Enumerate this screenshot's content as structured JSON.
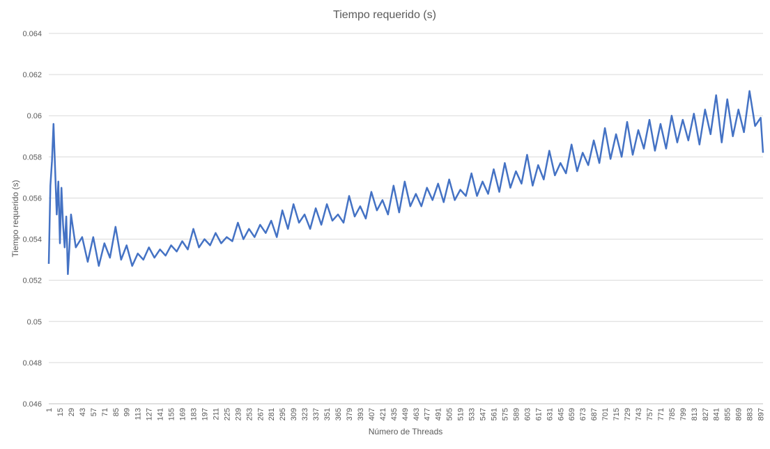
{
  "chart_data": {
    "type": "line",
    "title": "Tiempo requerido (s)",
    "xlabel": "Número de Threads",
    "ylabel": "Tiempo requerido (s)",
    "ylim": [
      0.046,
      0.064
    ],
    "xlim": [
      1,
      900
    ],
    "y_ticks": [
      "0.046",
      "0.048",
      "0.05",
      "0.052",
      "0.054",
      "0.056",
      "0.058",
      "0.06",
      "0.062",
      "0.064"
    ],
    "x_ticks": [
      "1",
      "15",
      "29",
      "43",
      "57",
      "71",
      "85",
      "99",
      "113",
      "127",
      "141",
      "155",
      "169",
      "183",
      "197",
      "211",
      "225",
      "239",
      "253",
      "267",
      "281",
      "295",
      "309",
      "323",
      "337",
      "351",
      "365",
      "379",
      "393",
      "407",
      "421",
      "435",
      "449",
      "463",
      "477",
      "491",
      "505",
      "519",
      "533",
      "547",
      "561",
      "575",
      "589",
      "603",
      "617",
      "631",
      "645",
      "659",
      "673",
      "687",
      "701",
      "715",
      "729",
      "743",
      "757",
      "771",
      "785",
      "799",
      "813",
      "827",
      "841",
      "855",
      "869",
      "883",
      "897"
    ],
    "grid": true,
    "legend": "none",
    "series": [
      {
        "color": "#4472c4",
        "x": [
          1,
          3,
          5,
          7,
          9,
          11,
          13,
          15,
          17,
          19,
          21,
          23,
          25,
          27,
          29,
          35,
          43,
          50,
          57,
          64,
          71,
          78,
          85,
          92,
          99,
          106,
          113,
          120,
          127,
          134,
          141,
          148,
          155,
          162,
          169,
          176,
          183,
          190,
          197,
          204,
          211,
          218,
          225,
          232,
          239,
          246,
          253,
          260,
          267,
          274,
          281,
          288,
          295,
          302,
          309,
          316,
          323,
          330,
          337,
          344,
          351,
          358,
          365,
          372,
          379,
          386,
          393,
          400,
          407,
          414,
          421,
          428,
          435,
          442,
          449,
          456,
          463,
          470,
          477,
          484,
          491,
          498,
          505,
          512,
          519,
          526,
          533,
          540,
          547,
          554,
          561,
          568,
          575,
          582,
          589,
          596,
          603,
          610,
          617,
          624,
          631,
          638,
          645,
          652,
          659,
          666,
          673,
          680,
          687,
          694,
          701,
          708,
          715,
          722,
          729,
          736,
          743,
          750,
          757,
          764,
          771,
          778,
          785,
          792,
          799,
          806,
          813,
          820,
          827,
          834,
          841,
          848,
          855,
          862,
          869,
          876,
          883,
          890,
          897,
          900
        ],
        "values": [
          0.0528,
          0.0566,
          0.0578,
          0.0596,
          0.0574,
          0.0552,
          0.0568,
          0.0538,
          0.0565,
          0.0547,
          0.0536,
          0.0551,
          0.0523,
          0.0536,
          0.0552,
          0.0536,
          0.0541,
          0.0529,
          0.0541,
          0.0527,
          0.0538,
          0.0531,
          0.0546,
          0.053,
          0.0537,
          0.0527,
          0.0533,
          0.053,
          0.0536,
          0.0531,
          0.0535,
          0.0532,
          0.0537,
          0.0534,
          0.0539,
          0.0535,
          0.0545,
          0.0536,
          0.054,
          0.0537,
          0.0543,
          0.0538,
          0.0541,
          0.0539,
          0.0548,
          0.054,
          0.0545,
          0.0541,
          0.0547,
          0.0543,
          0.0549,
          0.0541,
          0.0554,
          0.0545,
          0.0557,
          0.0548,
          0.0552,
          0.0545,
          0.0555,
          0.0547,
          0.0557,
          0.0549,
          0.0552,
          0.0548,
          0.0561,
          0.0551,
          0.0556,
          0.055,
          0.0563,
          0.0554,
          0.0559,
          0.0552,
          0.0566,
          0.0553,
          0.0568,
          0.0556,
          0.0562,
          0.0556,
          0.0565,
          0.0559,
          0.0567,
          0.0558,
          0.0569,
          0.0559,
          0.0564,
          0.0561,
          0.0572,
          0.0561,
          0.0568,
          0.0562,
          0.0574,
          0.0563,
          0.0577,
          0.0565,
          0.0573,
          0.0567,
          0.0581,
          0.0566,
          0.0576,
          0.0569,
          0.0583,
          0.0571,
          0.0577,
          0.0572,
          0.0586,
          0.0573,
          0.0582,
          0.0576,
          0.0588,
          0.0577,
          0.0594,
          0.0579,
          0.0591,
          0.058,
          0.0597,
          0.0581,
          0.0593,
          0.0584,
          0.0598,
          0.0583,
          0.0596,
          0.0584,
          0.06,
          0.0587,
          0.0598,
          0.0588,
          0.0601,
          0.0586,
          0.0603,
          0.0591,
          0.061,
          0.0587,
          0.0608,
          0.059,
          0.0603,
          0.0592,
          0.0612,
          0.0595,
          0.0599,
          0.0582
        ]
      }
    ]
  }
}
